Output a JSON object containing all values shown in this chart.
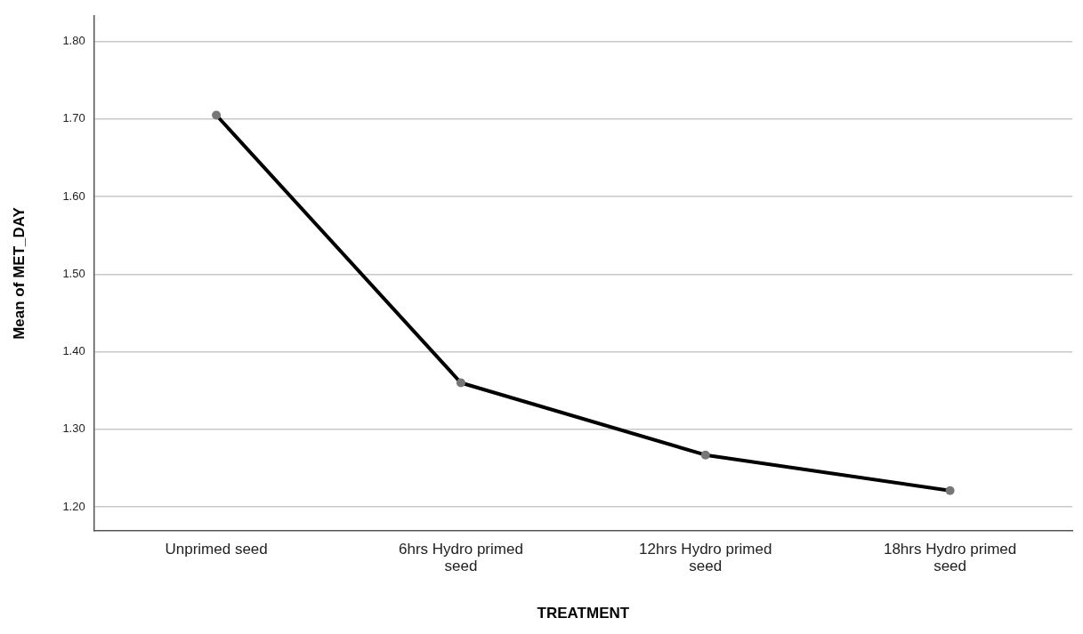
{
  "chart_data": {
    "type": "line",
    "xlabel": "TREATMENT",
    "ylabel": "Mean of MET_DAY",
    "categories": [
      "Unprimed seed",
      "6hrs Hydro primed seed",
      "12hrs Hydro primed seed",
      "18hrs Hydro primed seed"
    ],
    "series": [
      {
        "color": "#000000",
        "values": [
          1.705,
          1.36,
          1.267,
          1.221
        ]
      }
    ],
    "ylim": [
      1.169,
      1.833
    ],
    "yticks": [
      {
        "value": 1.2,
        "label": "1.20"
      },
      {
        "value": 1.3,
        "label": "1.30"
      },
      {
        "value": 1.4,
        "label": "1.40"
      },
      {
        "value": 1.5,
        "label": "1.50"
      },
      {
        "value": 1.6,
        "label": "1.60"
      },
      {
        "value": 1.7,
        "label": "1.70"
      },
      {
        "value": 1.8,
        "label": "1.80"
      }
    ],
    "grid": "y",
    "legend": false,
    "marker": "circle",
    "line_style": "solid"
  }
}
